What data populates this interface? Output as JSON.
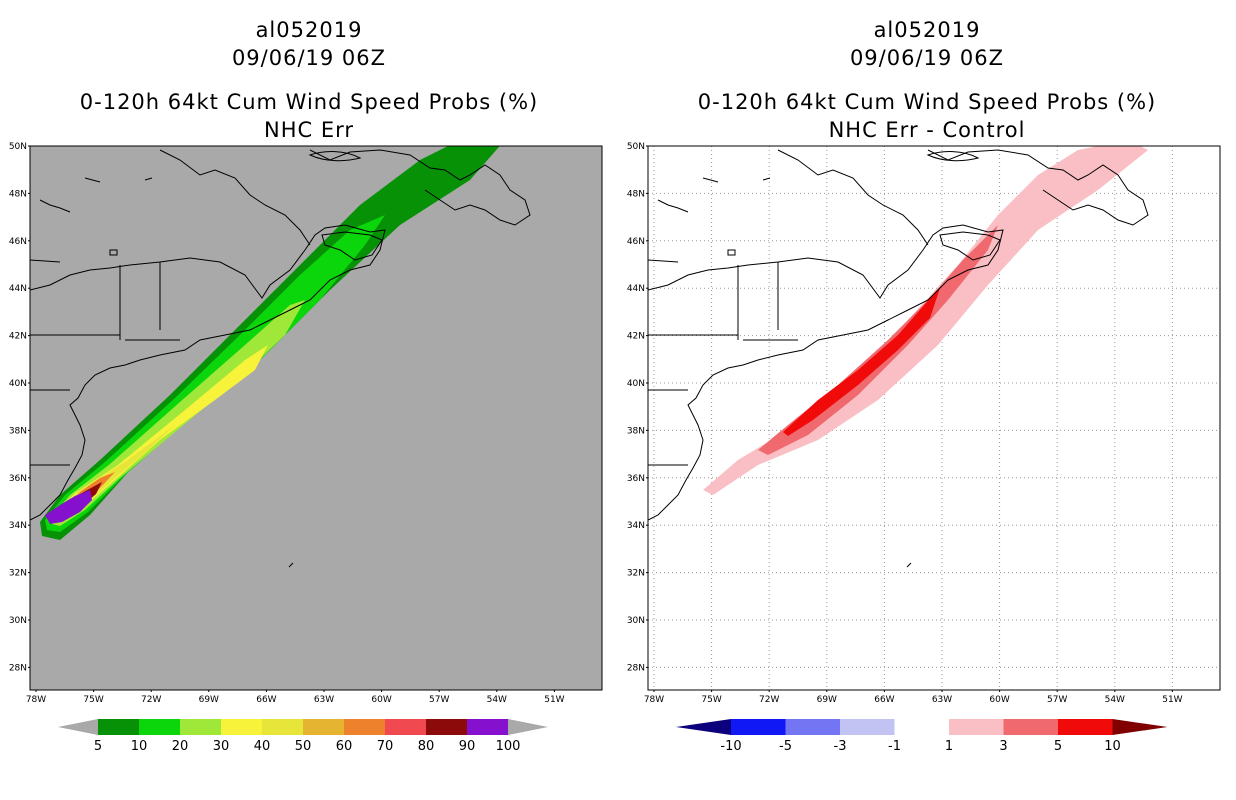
{
  "left_panel": {
    "storm_id": "al052019",
    "datetime": "09/06/19 06Z",
    "product": "0-120h 64kt Cum Wind Speed Probs (%)",
    "subtitle": "NHC Err",
    "colors": {
      "background": "#a9a9a9",
      "land": "#a9a9a9"
    },
    "colorbar": {
      "labels": [
        "5",
        "10",
        "20",
        "30",
        "40",
        "50",
        "60",
        "70",
        "80",
        "90",
        "100"
      ],
      "colors": [
        "#079107",
        "#0bd60b",
        "#9fe83a",
        "#f6f33a",
        "#e7e43a",
        "#e5b431",
        "#ee812b",
        "#f0494f",
        "#8c0a0a",
        "#8510cd"
      ],
      "end_color": "#a9a9a9"
    }
  },
  "right_panel": {
    "storm_id": "al052019",
    "datetime": "09/06/19 06Z",
    "product": "0-120h 64kt Cum Wind Speed Probs (%)",
    "subtitle": "NHC Err - Control",
    "colors": {
      "background": "#ffffff"
    },
    "colorbar": {
      "labels": [
        "-10",
        "-5",
        "-3",
        "-1",
        "1",
        "3",
        "5",
        "10"
      ],
      "colors": [
        "#0f18f5",
        "#7475f3",
        "#c3c3f3",
        "#ffffff",
        "#f9bfc4",
        "#f0696f",
        "#f00a0a"
      ],
      "end_left": "#0c007c",
      "end_right": "#800000"
    }
  },
  "axes": {
    "lat_labels": [
      "50N",
      "48N",
      "46N",
      "44N",
      "42N",
      "40N",
      "38N",
      "36N",
      "34N",
      "32N",
      "30N",
      "28N"
    ],
    "lon_labels": [
      "78W",
      "75W",
      "72W",
      "69W",
      "66W",
      "63W",
      "60W",
      "57W",
      "54W",
      "51W"
    ]
  }
}
